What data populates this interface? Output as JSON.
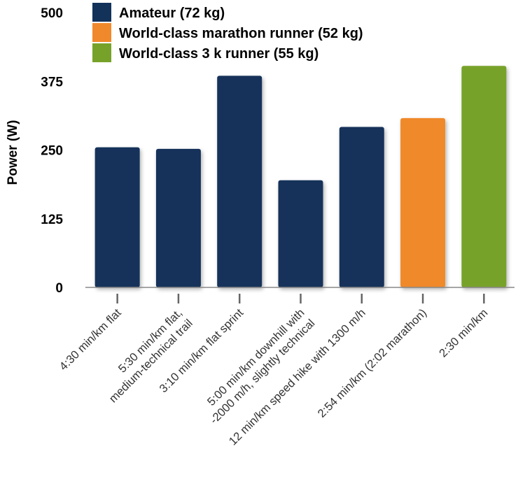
{
  "chart_data": {
    "type": "bar",
    "ylabel": "Power (W)",
    "ylim": [
      0,
      500
    ],
    "yticks": [
      0,
      125,
      250,
      375,
      500
    ],
    "grid": false,
    "legend_position": "top",
    "categories": [
      [
        "4:30 min/km flat"
      ],
      [
        "5:30 min/km flat,",
        "medium-technical trail"
      ],
      [
        "3:10 min/km flat sprint"
      ],
      [
        "5:00 min/km downhill with",
        "-2000 m/h, slightly technical"
      ],
      [
        "12 min/km speed hike with 1300 m/h"
      ],
      [
        "2:54 min/km (2:02 marathon)"
      ],
      [
        "2:30 min/km"
      ]
    ],
    "values": [
      255,
      252,
      385,
      195,
      292,
      308,
      403
    ],
    "bar_series": [
      0,
      0,
      0,
      0,
      0,
      1,
      2
    ],
    "series": [
      {
        "name": "Amateur (72 kg)",
        "color": "#12325a"
      },
      {
        "name": "World-class marathon runner (52 kg)",
        "color": "#f0892b"
      },
      {
        "name": "World-class 3 k runner (55 kg)",
        "color": "#77a22a"
      }
    ]
  }
}
